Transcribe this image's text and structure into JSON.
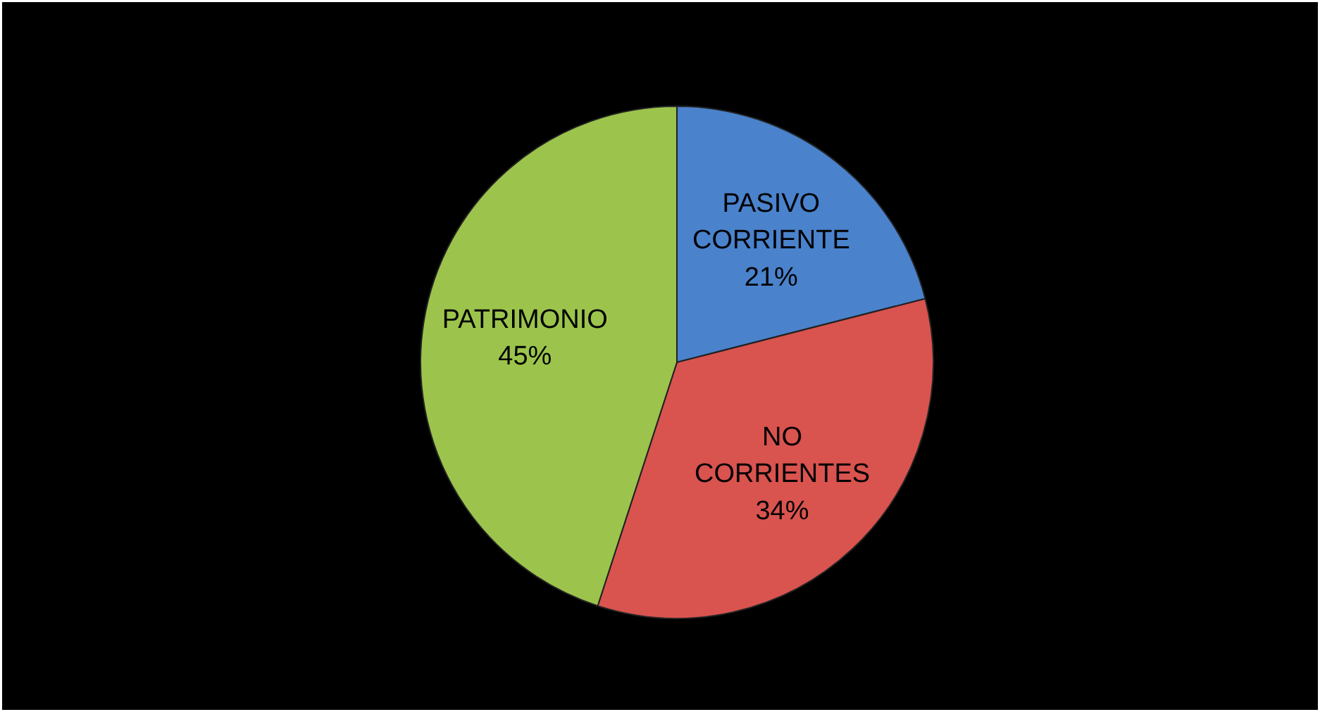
{
  "chart_data": {
    "type": "pie",
    "categories": [
      "PASIVO CORRIENTE",
      "NO CORRIENTES",
      "PATRIMONIO"
    ],
    "values": [
      21,
      34,
      45
    ],
    "colors": [
      "#4a82cc",
      "#d9534f",
      "#9cc44c"
    ],
    "value_labels": [
      "21%",
      "34%",
      "45%"
    ]
  }
}
